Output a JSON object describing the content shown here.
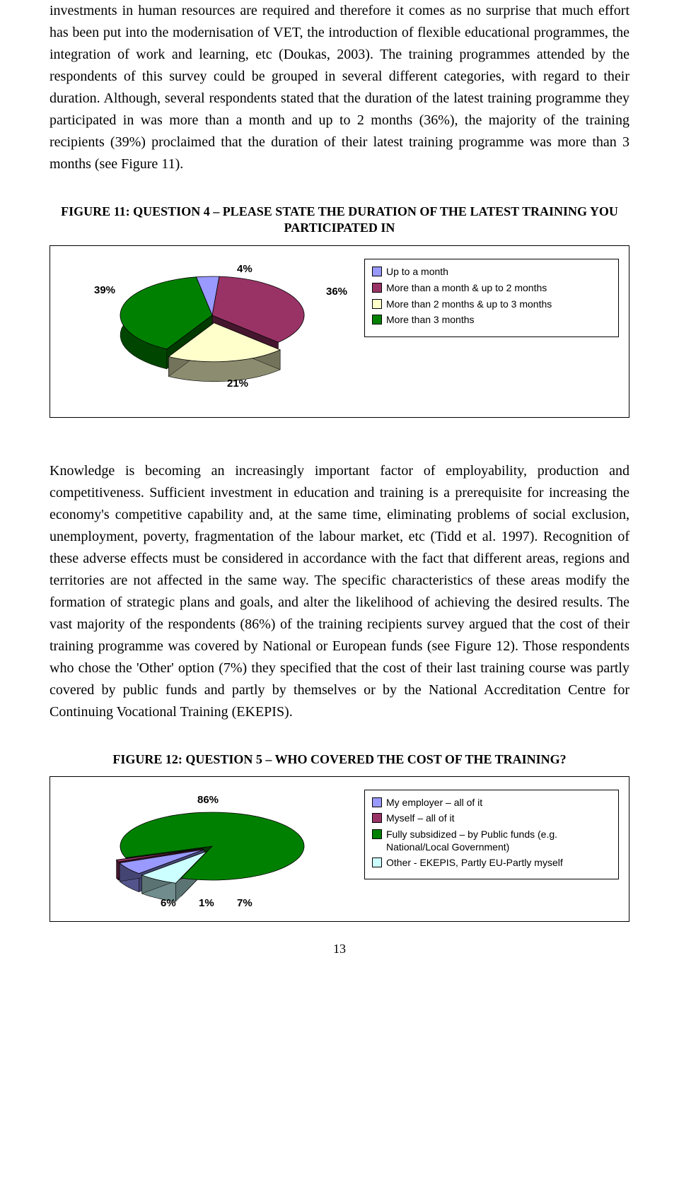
{
  "paragraph1": "investments in human resources are required and therefore it comes as no surprise that much effort has been put into the modernisation of VET, the introduction of flexible educational programmes, the integration of work and learning, etc (Doukas, 2003). The training programmes attended by the respondents of this survey could be grouped in several different categories, with regard to their duration. Although, several respondents stated that the duration of the latest training programme they participated in was more than a month and up to 2 months (36%), the majority of the training recipients (39%) proclaimed that the duration of their latest training programme was more than 3 months (see Figure 11).",
  "figure11": {
    "title": "FIGURE 11: QUESTION 4 – PLEASE STATE THE DURATION OF THE LATEST TRAINING YOU PARTICIPATED IN",
    "slices": [
      {
        "label": "Up to a month",
        "value": 4,
        "color": "#9999ff"
      },
      {
        "label": "More than a month & up to 2 months",
        "value": 36,
        "color": "#993366"
      },
      {
        "label": "More than 2 months & up to 3 months",
        "value": 21,
        "color": "#ffffcc"
      },
      {
        "label": "More than 3 months",
        "value": 39,
        "color": "#008000"
      }
    ],
    "pct_labels": {
      "l0": "4%",
      "l1": "36%",
      "l2": "21%",
      "l3": "39%"
    }
  },
  "paragraph2": "Knowledge is becoming an increasingly important factor of employability, production and competitiveness. Sufficient investment in education and training is a prerequisite for increasing the economy's competitive capability and, at the same time, eliminating problems of social exclusion, unemployment, poverty, fragmentation of the labour market, etc (Tidd et al. 1997). Recognition of these adverse effects must be considered in accordance with the fact that different areas, regions and territories are not affected in the same way. The specific characteristics of these areas modify the formation of strategic plans and goals, and alter the likelihood of achieving the desired results. The vast majority of the respondents (86%) of the training recipients survey argued that the cost of their training programme was covered by National or European funds (see Figure 12). Those respondents who chose the 'Other' option (7%) they specified that the cost of their last training course was partly covered by public funds and partly by themselves or by the National Accreditation Centre for Continuing Vocational Training (EKEPIS).",
  "figure12": {
    "title": "FIGURE 12: QUESTION 5 – WHO COVERED THE COST OF THE TRAINING?",
    "slices": [
      {
        "label": "My employer – all of it",
        "value": 6,
        "color": "#9999ff"
      },
      {
        "label": "Myself – all of it",
        "value": 1,
        "color": "#993366"
      },
      {
        "label": "Fully subsidized – by Public funds (e.g. National/Local Government)",
        "value": 86,
        "color": "#008000"
      },
      {
        "label": "Other - EKEPIS, Partly EU-Partly myself",
        "value": 7,
        "color": "#ccffff"
      }
    ],
    "pct_labels": {
      "l0": "6%",
      "l1": "1%",
      "l2": "86%",
      "l3": "7%"
    }
  },
  "page_number": "13"
}
